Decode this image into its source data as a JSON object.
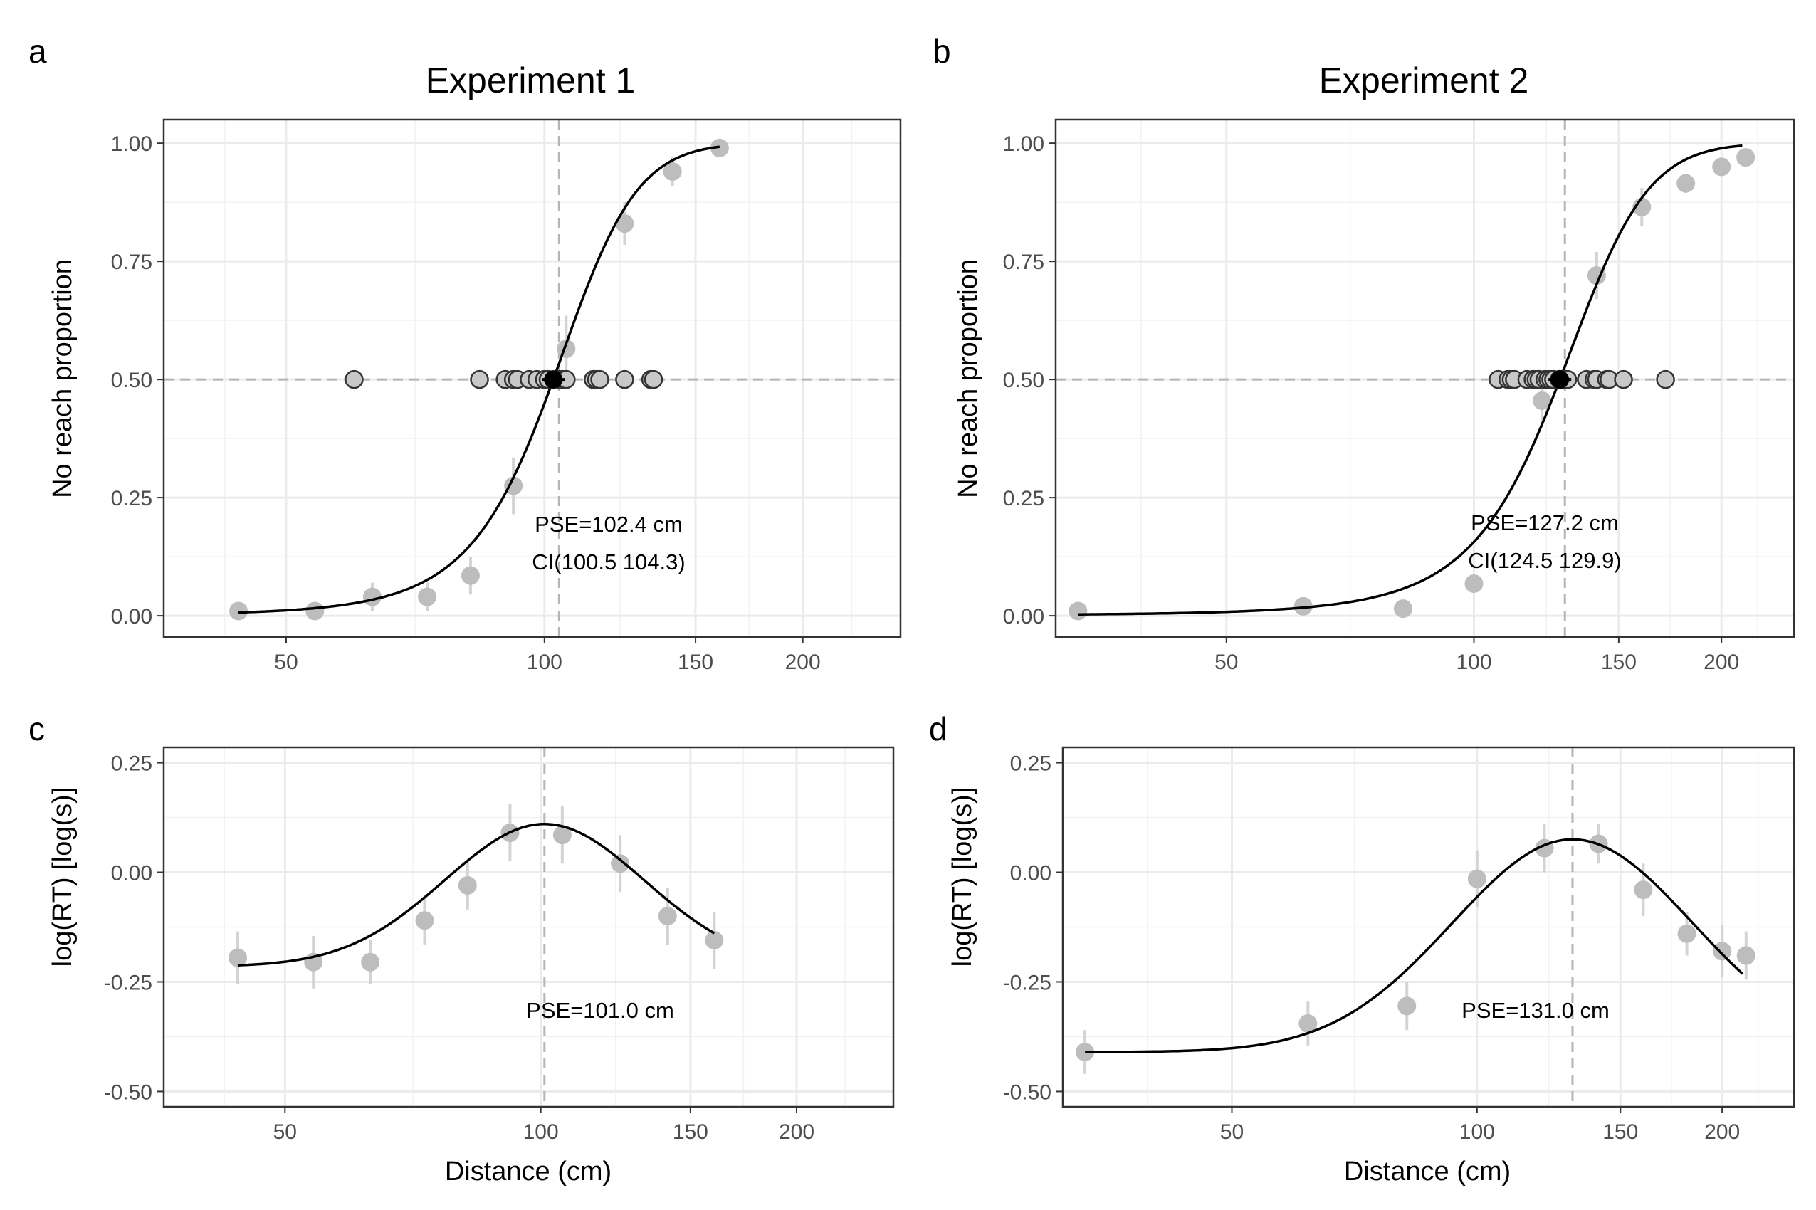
{
  "figure": {
    "shared_xlabel": "Distance (cm)",
    "x_scale": "log",
    "x_ticks": [
      50,
      100,
      150,
      200
    ],
    "colors": {
      "points": "#bdbdbd",
      "errorbars": "#d3d3d3",
      "threshold_points_fill": "#c8c8c8",
      "threshold_points_stroke": "#333333",
      "pse_marker": "#000000",
      "curve": "#000000",
      "reference_lines": "#b5b5b5",
      "grid": "#ebebeb",
      "panel_border": "#333333"
    }
  },
  "chart_data": [
    {
      "panel_id": "a",
      "panel_label": "a",
      "type": "scatter",
      "title": "Experiment 1",
      "xlabel": "",
      "ylabel": "No reach proportion",
      "x_scale": "log",
      "xlim": [
        36,
        260
      ],
      "ylim": [
        -0.045,
        1.05
      ],
      "x_ticks": [
        50,
        100,
        150,
        200
      ],
      "y_ticks": [
        0,
        0.25,
        0.5,
        0.75,
        1.0
      ],
      "y_tick_labels": [
        "0.00",
        "0.25",
        "0.50",
        "0.75",
        "1.00"
      ],
      "grid": true,
      "points": [
        {
          "x": 44,
          "y": 0.01,
          "err": 0.0
        },
        {
          "x": 54,
          "y": 0.01,
          "err": 0.0
        },
        {
          "x": 63,
          "y": 0.04,
          "err": 0.03
        },
        {
          "x": 73,
          "y": 0.04,
          "err": 0.03
        },
        {
          "x": 82,
          "y": 0.085,
          "err": 0.04
        },
        {
          "x": 92,
          "y": 0.275,
          "err": 0.06
        },
        {
          "x": 106,
          "y": 0.565,
          "err": 0.07
        },
        {
          "x": 124,
          "y": 0.83,
          "err": 0.045
        },
        {
          "x": 141,
          "y": 0.94,
          "err": 0.03
        },
        {
          "x": 160,
          "y": 0.99,
          "err": 0.0
        }
      ],
      "curve": {
        "model": "logistic",
        "x_range": [
          44,
          160
        ],
        "pse": 102.4,
        "slope": 0.085
      },
      "threshold_points": {
        "y": 0.5,
        "x": [
          60,
          84,
          90,
          92,
          93,
          96,
          98,
          100,
          101,
          104,
          105,
          106,
          114,
          115,
          116,
          124,
          133,
          134
        ]
      },
      "pse_marker": {
        "x": 102.4,
        "y": 0.5
      },
      "vline_x": 104,
      "hline_y": 0.5,
      "annotations": [
        "PSE=102.4 cm",
        "CI(100.5 104.3)"
      ]
    },
    {
      "panel_id": "b",
      "panel_label": "b",
      "type": "scatter",
      "title": "Experiment 2",
      "xlabel": "",
      "ylabel": "No reach proportion",
      "x_scale": "log",
      "xlim": [
        31,
        245
      ],
      "ylim": [
        -0.045,
        1.05
      ],
      "x_ticks": [
        50,
        100,
        150,
        200
      ],
      "y_ticks": [
        0,
        0.25,
        0.5,
        0.75,
        1.0
      ],
      "y_tick_labels": [
        "0.00",
        "0.25",
        "0.50",
        "0.75",
        "1.00"
      ],
      "grid": true,
      "points": [
        {
          "x": 33,
          "y": 0.01,
          "err": 0.0
        },
        {
          "x": 62,
          "y": 0.02,
          "err": 0.0
        },
        {
          "x": 82,
          "y": 0.015,
          "err": 0.0
        },
        {
          "x": 100,
          "y": 0.068,
          "err": 0.0
        },
        {
          "x": 121,
          "y": 0.455,
          "err": 0.05
        },
        {
          "x": 141,
          "y": 0.72,
          "err": 0.05
        },
        {
          "x": 160,
          "y": 0.865,
          "err": 0.04
        },
        {
          "x": 181,
          "y": 0.915,
          "err": 0.02
        },
        {
          "x": 200,
          "y": 0.95,
          "err": 0.0
        },
        {
          "x": 214,
          "y": 0.97,
          "err": 0.0
        }
      ],
      "curve": {
        "model": "logistic",
        "x_range": [
          33,
          212
        ],
        "pse": 127.2,
        "slope": 0.062
      },
      "threshold_points": {
        "y": 0.5,
        "x": [
          107,
          110,
          111,
          112,
          116,
          118,
          119,
          120,
          122,
          123,
          124,
          125,
          127,
          128,
          129,
          130,
          137,
          140,
          141,
          145,
          146,
          152,
          171
        ]
      },
      "pse_marker": {
        "x": 127.2,
        "y": 0.5
      },
      "vline_x": 129,
      "hline_y": 0.5,
      "annotations": [
        "PSE=127.2 cm",
        "CI(124.5 129.9)"
      ]
    },
    {
      "panel_id": "c",
      "panel_label": "c",
      "type": "scatter",
      "title": "",
      "xlabel": "Distance (cm)",
      "ylabel": "log(RT) [log(s)]",
      "x_scale": "log",
      "xlim": [
        36,
        260
      ],
      "ylim": [
        -0.535,
        0.285
      ],
      "x_ticks": [
        50,
        100,
        150,
        200
      ],
      "y_ticks": [
        -0.5,
        -0.25,
        0,
        0.25
      ],
      "y_tick_labels": [
        "-0.50",
        "-0.25",
        "0.00",
        "0.25"
      ],
      "grid": true,
      "points": [
        {
          "x": 44,
          "y": -0.195,
          "err": 0.06
        },
        {
          "x": 54,
          "y": -0.205,
          "err": 0.06
        },
        {
          "x": 63,
          "y": -0.205,
          "err": 0.05
        },
        {
          "x": 73,
          "y": -0.11,
          "err": 0.055
        },
        {
          "x": 82,
          "y": -0.03,
          "err": 0.055
        },
        {
          "x": 92,
          "y": 0.09,
          "err": 0.065
        },
        {
          "x": 106,
          "y": 0.085,
          "err": 0.065
        },
        {
          "x": 124,
          "y": 0.02,
          "err": 0.065
        },
        {
          "x": 141,
          "y": -0.1,
          "err": 0.065
        },
        {
          "x": 160,
          "y": -0.155,
          "err": 0.065
        }
      ],
      "curve": {
        "model": "gaussian",
        "x_range": [
          44,
          160
        ],
        "peak_x": 101.0,
        "peak_y": 0.11,
        "base_y": -0.215,
        "width_log": 0.27
      },
      "vline_x": 101.0,
      "annotations": [
        "PSE=101.0 cm"
      ]
    },
    {
      "panel_id": "d",
      "panel_label": "d",
      "type": "scatter",
      "title": "",
      "xlabel": "Distance (cm)",
      "ylabel": "log(RT) [log(s)]",
      "x_scale": "log",
      "xlim": [
        31,
        245
      ],
      "ylim": [
        -0.535,
        0.285
      ],
      "x_ticks": [
        50,
        100,
        150,
        200
      ],
      "y_ticks": [
        -0.5,
        -0.25,
        0,
        0.25
      ],
      "y_tick_labels": [
        "-0.50",
        "-0.25",
        "0.00",
        "0.25"
      ],
      "grid": true,
      "points": [
        {
          "x": 33,
          "y": -0.41,
          "err": 0.05
        },
        {
          "x": 62,
          "y": -0.345,
          "err": 0.05
        },
        {
          "x": 82,
          "y": -0.305,
          "err": 0.055
        },
        {
          "x": 100,
          "y": -0.015,
          "err": 0.065
        },
        {
          "x": 121,
          "y": 0.055,
          "err": 0.055
        },
        {
          "x": 141,
          "y": 0.065,
          "err": 0.045
        },
        {
          "x": 160,
          "y": -0.04,
          "err": 0.06
        },
        {
          "x": 181,
          "y": -0.14,
          "err": 0.05
        },
        {
          "x": 200,
          "y": -0.18,
          "err": 0.06
        },
        {
          "x": 214,
          "y": -0.19,
          "err": 0.055
        }
      ],
      "curve": {
        "model": "gaussian",
        "x_range": [
          33,
          212
        ],
        "peak_x": 131.0,
        "peak_y": 0.075,
        "base_y": -0.41,
        "width_log": 0.34
      },
      "vline_x": 131.0,
      "annotations": [
        "PSE=131.0 cm"
      ]
    }
  ]
}
